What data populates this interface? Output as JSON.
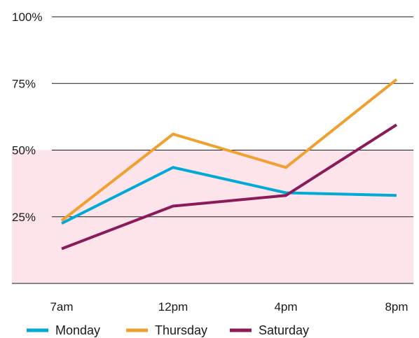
{
  "chart_data": {
    "type": "line",
    "title": "",
    "xlabel": "",
    "ylabel": "",
    "categories": [
      "7am",
      "12pm",
      "4pm",
      "8pm"
    ],
    "ylim": [
      0,
      100
    ],
    "y_ticks": [
      {
        "value": 100,
        "label": "100%"
      },
      {
        "value": 75,
        "label": "75%"
      },
      {
        "value": 50,
        "label": "50%"
      },
      {
        "value": 25,
        "label": "25%"
      }
    ],
    "shaded_band": {
      "from": 0,
      "to": 50,
      "color": "#fce4ea"
    },
    "grid": true,
    "legend_position": "bottom",
    "series": [
      {
        "name": "Monday",
        "color": "#00aad4",
        "values": [
          22.5,
          43.5,
          34,
          33
        ]
      },
      {
        "name": "Thursday",
        "color": "#f0a030",
        "values": [
          23.5,
          56,
          43.5,
          76.5
        ]
      },
      {
        "name": "Saturday",
        "color": "#8b1a5a",
        "values": [
          13,
          29,
          33,
          59.5
        ]
      }
    ]
  }
}
